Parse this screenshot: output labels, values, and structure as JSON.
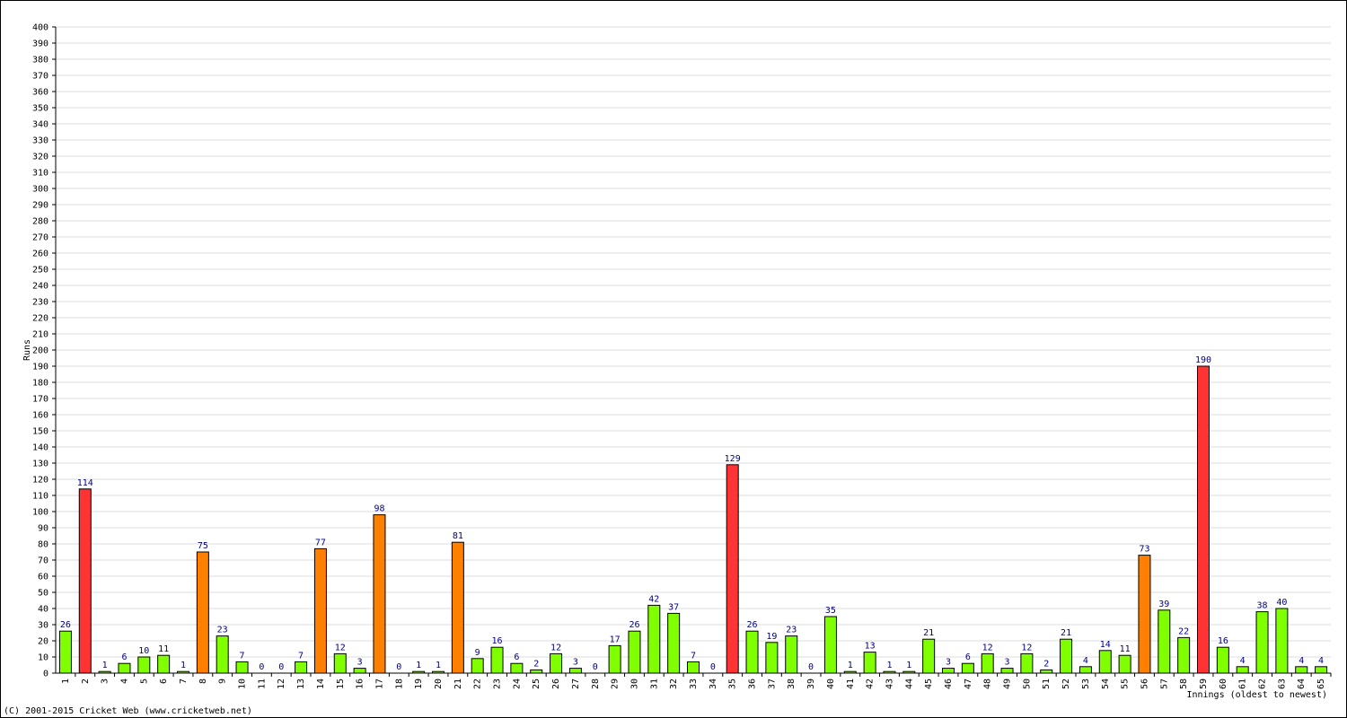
{
  "chart_data": {
    "type": "bar",
    "y_label": "Runs",
    "x_label": "Innings (oldest to newest)",
    "footer": "(C) 2001-2015 Cricket Web (www.cricketweb.net)",
    "categories": [
      "1",
      "2",
      "3",
      "4",
      "5",
      "6",
      "7",
      "8",
      "9",
      "10",
      "11",
      "12",
      "13",
      "14",
      "15",
      "16",
      "17",
      "18",
      "19",
      "20",
      "21",
      "22",
      "23",
      "24",
      "25",
      "26",
      "27",
      "28",
      "29",
      "30",
      "31",
      "32",
      "33",
      "34",
      "35",
      "36",
      "37",
      "38",
      "39",
      "40",
      "41",
      "42",
      "43",
      "44",
      "45",
      "46",
      "47",
      "48",
      "49",
      "50",
      "51",
      "52",
      "53",
      "54",
      "55",
      "56",
      "57",
      "58",
      "59",
      "60",
      "61",
      "62",
      "63",
      "64",
      "65"
    ],
    "values": [
      26,
      114,
      1,
      6,
      10,
      11,
      1,
      75,
      23,
      7,
      0,
      0,
      7,
      77,
      12,
      3,
      98,
      0,
      1,
      1,
      81,
      9,
      16,
      6,
      2,
      12,
      3,
      0,
      17,
      26,
      42,
      37,
      7,
      0,
      129,
      26,
      19,
      23,
      0,
      35,
      1,
      13,
      1,
      1,
      21,
      3,
      6,
      12,
      3,
      12,
      2,
      21,
      4,
      14,
      11,
      73,
      39,
      22,
      190,
      16,
      4,
      38,
      40,
      4,
      4
    ],
    "colors": [
      "#80ff00",
      "#ff3333",
      "#80ff00",
      "#80ff00",
      "#80ff00",
      "#80ff00",
      "#80ff00",
      "#ff8000",
      "#80ff00",
      "#80ff00",
      "#80ff00",
      "#80ff00",
      "#80ff00",
      "#ff8000",
      "#80ff00",
      "#80ff00",
      "#ff8000",
      "#80ff00",
      "#80ff00",
      "#80ff00",
      "#ff8000",
      "#80ff00",
      "#80ff00",
      "#80ff00",
      "#80ff00",
      "#80ff00",
      "#80ff00",
      "#80ff00",
      "#80ff00",
      "#80ff00",
      "#80ff00",
      "#80ff00",
      "#80ff00",
      "#80ff00",
      "#ff3333",
      "#80ff00",
      "#80ff00",
      "#80ff00",
      "#80ff00",
      "#80ff00",
      "#80ff00",
      "#80ff00",
      "#80ff00",
      "#80ff00",
      "#80ff00",
      "#80ff00",
      "#80ff00",
      "#80ff00",
      "#80ff00",
      "#80ff00",
      "#80ff00",
      "#80ff00",
      "#80ff00",
      "#80ff00",
      "#80ff00",
      "#ff8000",
      "#80ff00",
      "#80ff00",
      "#ff3333",
      "#80ff00",
      "#80ff00",
      "#80ff00",
      "#80ff00",
      "#80ff00",
      "#80ff00"
    ],
    "ylim": [
      0,
      400
    ],
    "yticks": [
      0,
      10,
      20,
      30,
      40,
      50,
      60,
      70,
      80,
      90,
      100,
      110,
      120,
      130,
      140,
      150,
      160,
      170,
      180,
      190,
      200,
      210,
      220,
      230,
      240,
      250,
      260,
      270,
      280,
      290,
      300,
      310,
      320,
      330,
      340,
      350,
      360,
      370,
      380,
      390,
      400
    ],
    "grid": true
  }
}
